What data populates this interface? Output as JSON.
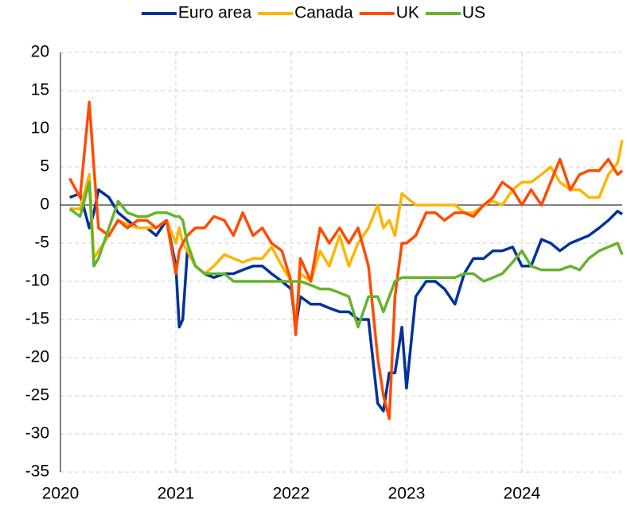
{
  "chart_data": {
    "type": "line",
    "x": [
      2020.08,
      2020.17,
      2020.25,
      2020.29,
      2020.33,
      2020.42,
      2020.5,
      2020.58,
      2020.67,
      2020.75,
      2020.83,
      2020.92,
      2021.0,
      2021.03,
      2021.06,
      2021.1,
      2021.17,
      2021.25,
      2021.33,
      2021.42,
      2021.5,
      2021.58,
      2021.67,
      2021.75,
      2021.83,
      2021.92,
      2022.0,
      2022.04,
      2022.08,
      2022.17,
      2022.25,
      2022.33,
      2022.42,
      2022.5,
      2022.58,
      2022.67,
      2022.75,
      2022.8,
      2022.85,
      2022.9,
      2022.96,
      2023.0,
      2023.08,
      2023.17,
      2023.25,
      2023.33,
      2023.42,
      2023.5,
      2023.58,
      2023.67,
      2023.75,
      2023.83,
      2023.92,
      2024.0,
      2024.08,
      2024.17,
      2024.25,
      2024.33,
      2024.42,
      2024.5,
      2024.58,
      2024.67,
      2024.75,
      2024.83,
      2024.87
    ],
    "series": [
      {
        "name": "Euro area",
        "color": "#003299",
        "values": [
          1,
          1.5,
          -3,
          -1,
          2,
          1,
          -1,
          -2,
          -3,
          -3,
          -4,
          -2,
          -8,
          -16,
          -15,
          -6,
          -8,
          -9,
          -9.5,
          -9,
          -9,
          -8.5,
          -8,
          -8,
          -9,
          -10,
          -11,
          -16,
          -12,
          -13,
          -13,
          -13.5,
          -14,
          -14,
          -15,
          -15,
          -26,
          -27,
          -22,
          -22,
          -16,
          -24,
          -12,
          -10,
          -10,
          -11,
          -13,
          -9,
          -7,
          -7,
          -6,
          -6,
          -5.5,
          -8,
          -8,
          -4.5,
          -5,
          -6,
          -5,
          -4.5,
          -4,
          -3,
          -2,
          -0.8,
          -1.2
        ]
      },
      {
        "name": "Canada",
        "color": "#ffb400",
        "values": [
          -0.5,
          -0.5,
          4,
          -7,
          -6,
          -4,
          -2,
          -2.5,
          -3,
          -3,
          -3,
          -2,
          -5,
          -3,
          -5,
          -6,
          -8,
          -9,
          -8,
          -6.5,
          -7,
          -7.5,
          -7,
          -7,
          -5.5,
          -8,
          -10,
          -16,
          -9,
          -10,
          -6,
          -8,
          -4,
          -8,
          -5,
          -3,
          0,
          -3,
          -2,
          -4,
          1.5,
          1,
          0,
          0,
          0,
          0,
          0,
          -1,
          -1,
          0,
          0.5,
          0,
          2,
          3,
          3,
          4,
          5,
          3,
          2,
          2,
          1,
          1,
          4,
          5.5,
          8.5
        ]
      },
      {
        "name": "UK",
        "color": "#ff4b00",
        "values": [
          3.5,
          1,
          13.5,
          5,
          -3,
          -4,
          -2,
          -3,
          -2,
          -2,
          -3,
          -2,
          -9,
          -6,
          -5,
          -4,
          -3,
          -3,
          -1.5,
          -2,
          -4,
          -1,
          -4,
          -3,
          -5,
          -6,
          -10,
          -17,
          -7,
          -10,
          -3,
          -5,
          -3,
          -5,
          -3,
          -8,
          -20,
          -25,
          -28,
          -12,
          -5,
          -5,
          -4,
          -1,
          -1,
          -2,
          -1,
          -1,
          -1.5,
          0,
          1,
          3,
          2,
          0,
          2,
          0,
          3,
          6,
          2,
          4,
          4.5,
          4.5,
          6,
          4,
          4.5
        ]
      },
      {
        "name": "US",
        "color": "#65b32e",
        "values": [
          -0.5,
          -1.5,
          3,
          -8,
          -7,
          -3,
          0.5,
          -1,
          -1.5,
          -1.5,
          -1,
          -1,
          -1.5,
          -1.5,
          -2,
          -5,
          -8,
          -9,
          -9,
          -9,
          -10,
          -10,
          -10,
          -10,
          -10,
          -10,
          -10,
          -10,
          -10,
          -10.5,
          -11,
          -11,
          -11.5,
          -12,
          -16,
          -12,
          -12,
          -14,
          -12,
          -10,
          -9.5,
          -9.5,
          -9.5,
          -9.5,
          -9.5,
          -9.5,
          -9.5,
          -9,
          -9,
          -10,
          -9.5,
          -9,
          -7.5,
          -6,
          -8,
          -8.5,
          -8.5,
          -8.5,
          -8,
          -8.5,
          -7,
          -6,
          -5.5,
          -5,
          -6.5
        ]
      }
    ],
    "xlim": [
      2020,
      2024.87
    ],
    "xticks": [
      2020,
      2021,
      2022,
      2023,
      2024
    ],
    "ylim": [
      -35,
      20
    ],
    "yticks": [
      -35,
      -30,
      -25,
      -20,
      -15,
      -10,
      -5,
      0,
      5,
      10,
      15,
      20
    ],
    "grid": true,
    "legend": "top"
  }
}
